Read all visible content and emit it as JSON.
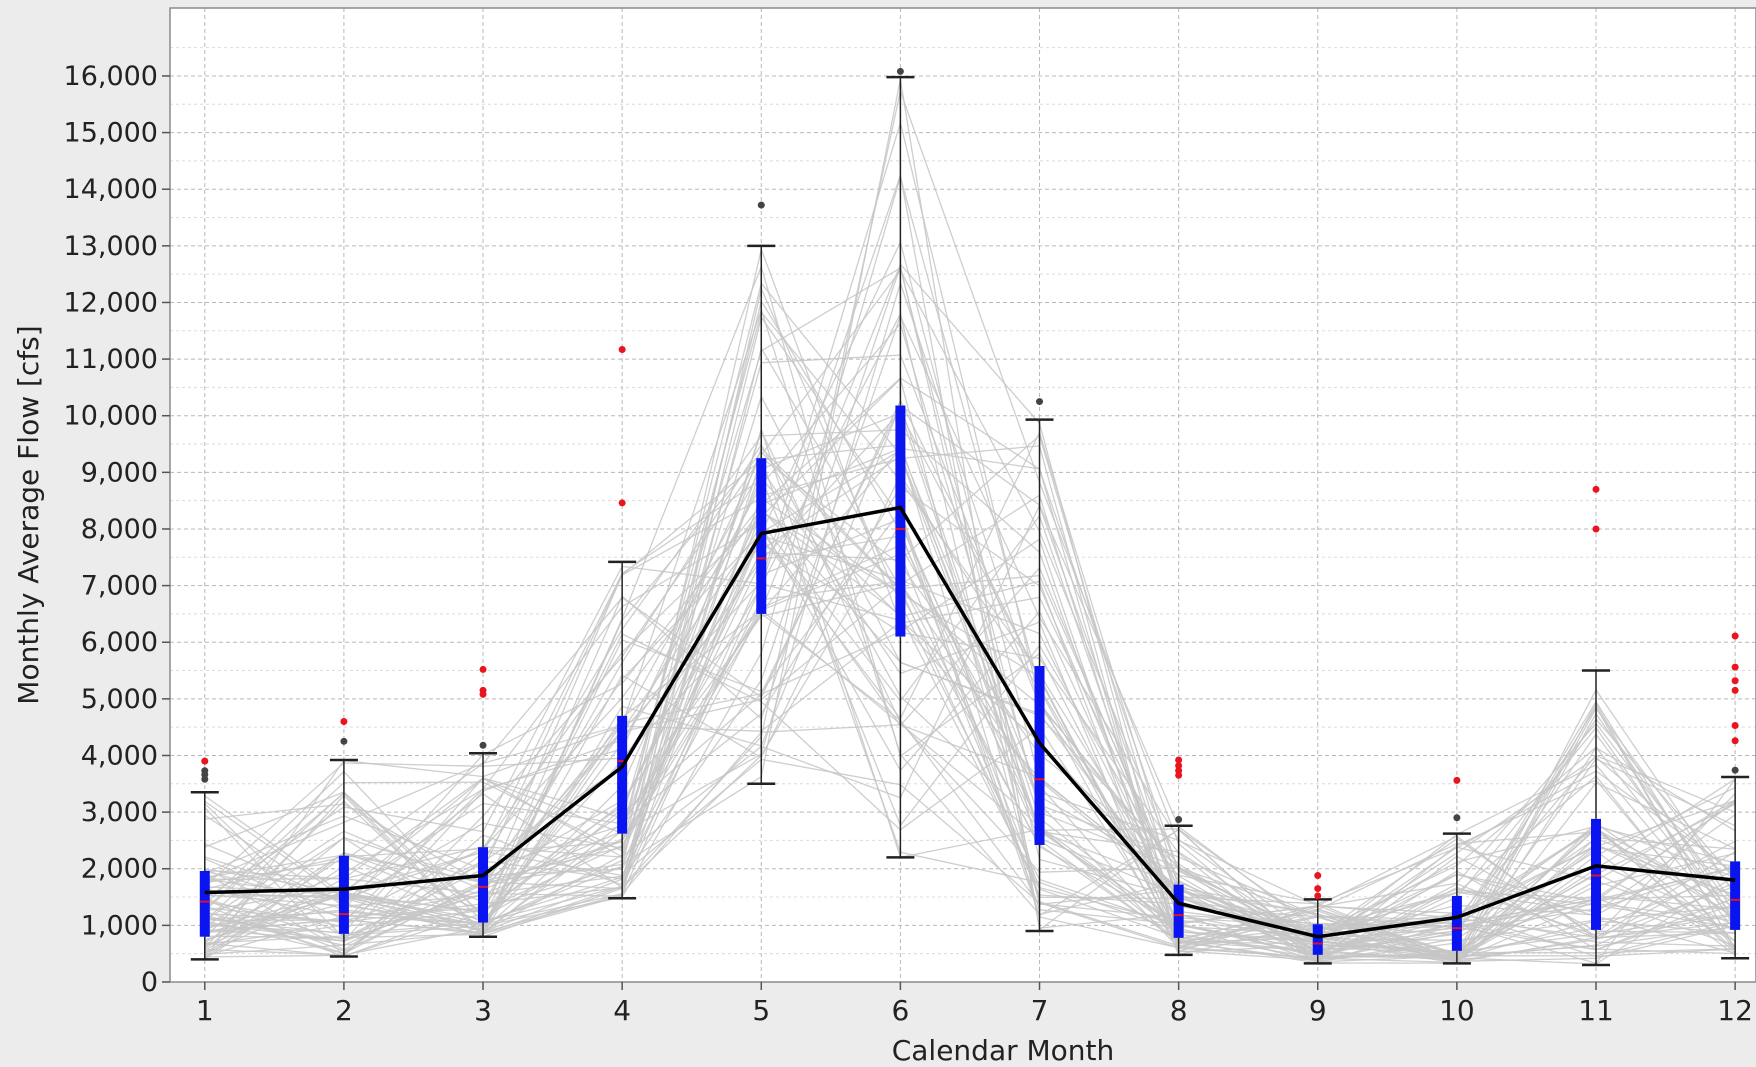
{
  "chart_data": {
    "type": "line",
    "subtype": "box plot with overlaid yearly traces",
    "title": "",
    "xlabel": "Calendar Month",
    "ylabel": "Monthly Average Flow [cfs]",
    "xlim": [
      0.75,
      12.15
    ],
    "ylim": [
      0,
      17200
    ],
    "x_ticks": [
      1,
      2,
      3,
      4,
      5,
      6,
      7,
      8,
      9,
      10,
      11,
      12
    ],
    "x_tick_labels": [
      "1",
      "2",
      "3",
      "4",
      "5",
      "6",
      "7",
      "8",
      "9",
      "10",
      "11",
      "12"
    ],
    "y_ticks": [
      0,
      1000,
      2000,
      3000,
      4000,
      5000,
      6000,
      7000,
      8000,
      9000,
      10000,
      11000,
      12000,
      13000,
      14000,
      15000,
      16000
    ],
    "y_tick_labels": [
      "0",
      "1,000",
      "2,000",
      "3,000",
      "4,000",
      "5,000",
      "6,000",
      "7,000",
      "8,000",
      "9,000",
      "10,000",
      "11,000",
      "12,000",
      "13,000",
      "14,000",
      "15,000",
      "16,000"
    ],
    "grid": true,
    "legend": "none",
    "colors": {
      "box": "#0a14f0",
      "mean_line": "#000000",
      "whisker": "#222222",
      "median": "#e0102a",
      "outlier_red": "#e8141e",
      "outlier_dark": "#444444",
      "trace": "#c6c6c6",
      "grid": "#b8b8b8",
      "plot_bg": "#ffffff",
      "figure_bg": "#ececec"
    },
    "series": [
      {
        "kind": "mean",
        "values": [
          1580,
          1640,
          1880,
          3800,
          7920,
          8380,
          4220,
          1390,
          800,
          1140,
          2050,
          1800
        ]
      }
    ],
    "boxes": [
      {
        "month": 1,
        "whislo": 400,
        "q1": 800,
        "med": 1420,
        "q3": 1960,
        "whishi": 3350,
        "outliers_red": [
          3900
        ],
        "outliers_dark": [
          3580,
          3660,
          3730
        ]
      },
      {
        "month": 2,
        "whislo": 450,
        "q1": 850,
        "med": 1200,
        "q3": 2230,
        "whishi": 3920,
        "outliers_red": [
          4600
        ],
        "outliers_dark": [
          4250
        ]
      },
      {
        "month": 3,
        "whislo": 800,
        "q1": 1050,
        "med": 1680,
        "q3": 2380,
        "whishi": 4040,
        "outliers_red": [
          5080,
          5150,
          5520
        ],
        "outliers_dark": [
          4180
        ]
      },
      {
        "month": 4,
        "whislo": 1480,
        "q1": 2620,
        "med": 3900,
        "q3": 4700,
        "whishi": 7420,
        "outliers_red": [
          8460,
          11170
        ],
        "outliers_dark": []
      },
      {
        "month": 5,
        "whislo": 3500,
        "q1": 6500,
        "med": 7480,
        "q3": 9250,
        "whishi": 13000,
        "outliers_red": [],
        "outliers_dark": [
          13720
        ]
      },
      {
        "month": 6,
        "whislo": 2200,
        "q1": 6100,
        "med": 8000,
        "q3": 10180,
        "whishi": 15980,
        "outliers_red": [],
        "outliers_dark": [
          16080
        ]
      },
      {
        "month": 7,
        "whislo": 900,
        "q1": 2420,
        "med": 3580,
        "q3": 5580,
        "whishi": 9930,
        "outliers_red": [],
        "outliers_dark": [
          10250
        ]
      },
      {
        "month": 8,
        "whislo": 480,
        "q1": 780,
        "med": 1180,
        "q3": 1720,
        "whishi": 2760,
        "outliers_red": [
          3650,
          3730,
          3820,
          3920
        ],
        "outliers_dark": [
          2870
        ]
      },
      {
        "month": 9,
        "whislo": 330,
        "q1": 480,
        "med": 680,
        "q3": 1020,
        "whishi": 1460,
        "outliers_red": [
          1520,
          1650,
          1880
        ],
        "outliers_dark": []
      },
      {
        "month": 10,
        "whislo": 330,
        "q1": 550,
        "med": 950,
        "q3": 1520,
        "whishi": 2620,
        "outliers_red": [
          3560
        ],
        "outliers_dark": [
          2900
        ]
      },
      {
        "month": 11,
        "whislo": 300,
        "q1": 920,
        "med": 1880,
        "q3": 2880,
        "whishi": 5500,
        "outliers_red": [
          8000,
          8700
        ],
        "outliers_dark": []
      },
      {
        "month": 12,
        "whislo": 420,
        "q1": 920,
        "med": 1450,
        "q3": 2130,
        "whishi": 3620,
        "outliers_red": [
          4260,
          4530,
          5150,
          5320,
          5560,
          6110
        ],
        "outliers_dark": [
          3740
        ]
      }
    ]
  }
}
